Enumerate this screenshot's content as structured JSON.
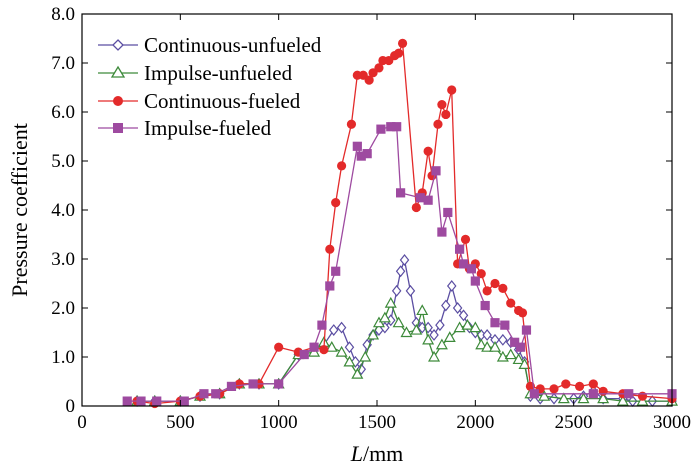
{
  "chart_data": {
    "type": "line",
    "xlabel_var": "L",
    "xlabel_unit": "/mm",
    "ylabel": "Pressure coefficient",
    "xlim": [
      0,
      3000
    ],
    "ylim": [
      0,
      8
    ],
    "xticks": [
      0,
      500,
      1000,
      1500,
      2000,
      2500,
      3000
    ],
    "yticks": [
      "0",
      "1.0",
      "2.0",
      "3.0",
      "4.0",
      "5.0",
      "6.0",
      "7.0",
      "8.0"
    ],
    "grid": false,
    "legend_position": "top-left",
    "series": [
      {
        "name": "Continuous-unfueled",
        "color": "#5b4ea2",
        "marker": "diamond-open",
        "points": [
          [
            280,
            0.1
          ],
          [
            370,
            0.1
          ],
          [
            500,
            0.1
          ],
          [
            600,
            0.2
          ],
          [
            700,
            0.25
          ],
          [
            800,
            0.45
          ],
          [
            900,
            0.45
          ],
          [
            1000,
            0.45
          ],
          [
            1100,
            1.05
          ],
          [
            1180,
            1.15
          ],
          [
            1230,
            1.25
          ],
          [
            1280,
            1.55
          ],
          [
            1320,
            1.6
          ],
          [
            1360,
            1.2
          ],
          [
            1390,
            0.9
          ],
          [
            1420,
            0.75
          ],
          [
            1450,
            1.25
          ],
          [
            1480,
            1.45
          ],
          [
            1510,
            1.55
          ],
          [
            1540,
            1.6
          ],
          [
            1570,
            1.75
          ],
          [
            1600,
            2.35
          ],
          [
            1620,
            2.75
          ],
          [
            1640,
            2.98
          ],
          [
            1670,
            2.35
          ],
          [
            1700,
            1.7
          ],
          [
            1730,
            1.6
          ],
          [
            1760,
            1.6
          ],
          [
            1790,
            1.45
          ],
          [
            1820,
            1.65
          ],
          [
            1850,
            2.05
          ],
          [
            1880,
            2.45
          ],
          [
            1910,
            2.0
          ],
          [
            1940,
            1.85
          ],
          [
            1970,
            1.6
          ],
          [
            2000,
            1.5
          ],
          [
            2030,
            1.45
          ],
          [
            2060,
            1.45
          ],
          [
            2100,
            1.35
          ],
          [
            2140,
            1.35
          ],
          [
            2180,
            1.3
          ],
          [
            2220,
            1.15
          ],
          [
            2250,
            0.9
          ],
          [
            2280,
            0.2
          ],
          [
            2330,
            0.15
          ],
          [
            2400,
            0.15
          ],
          [
            2500,
            0.15
          ],
          [
            2550,
            0.2
          ],
          [
            2600,
            0.3
          ],
          [
            2650,
            0.15
          ],
          [
            2750,
            0.15
          ],
          [
            2800,
            0.1
          ],
          [
            2900,
            0.1
          ],
          [
            3000,
            0.1
          ]
        ]
      },
      {
        "name": "Impulse-unfueled",
        "color": "#3d8a3a",
        "marker": "triangle-open",
        "points": [
          [
            280,
            0.1
          ],
          [
            370,
            0.1
          ],
          [
            500,
            0.1
          ],
          [
            600,
            0.2
          ],
          [
            700,
            0.25
          ],
          [
            800,
            0.45
          ],
          [
            900,
            0.45
          ],
          [
            1000,
            0.45
          ],
          [
            1100,
            1.05
          ],
          [
            1180,
            1.1
          ],
          [
            1230,
            1.3
          ],
          [
            1270,
            1.2
          ],
          [
            1320,
            1.1
          ],
          [
            1360,
            0.9
          ],
          [
            1400,
            0.65
          ],
          [
            1440,
            1.0
          ],
          [
            1480,
            1.45
          ],
          [
            1510,
            1.7
          ],
          [
            1540,
            1.8
          ],
          [
            1570,
            2.1
          ],
          [
            1610,
            1.7
          ],
          [
            1650,
            1.5
          ],
          [
            1700,
            1.55
          ],
          [
            1730,
            1.95
          ],
          [
            1760,
            1.35
          ],
          [
            1790,
            1.0
          ],
          [
            1830,
            1.25
          ],
          [
            1870,
            1.4
          ],
          [
            1920,
            1.6
          ],
          [
            1960,
            1.65
          ],
          [
            2000,
            1.6
          ],
          [
            2030,
            1.25
          ],
          [
            2060,
            1.2
          ],
          [
            2100,
            1.2
          ],
          [
            2140,
            1.0
          ],
          [
            2180,
            1.05
          ],
          [
            2220,
            0.95
          ],
          [
            2250,
            0.85
          ],
          [
            2280,
            0.25
          ],
          [
            2350,
            0.2
          ],
          [
            2450,
            0.15
          ],
          [
            2550,
            0.15
          ],
          [
            2650,
            0.15
          ],
          [
            2750,
            0.1
          ],
          [
            2850,
            0.1
          ],
          [
            3000,
            0.1
          ]
        ]
      },
      {
        "name": "Continuous-fueled",
        "color": "#e32a2a",
        "marker": "circle-filled",
        "points": [
          [
            280,
            0.1
          ],
          [
            370,
            0.05
          ],
          [
            500,
            0.1
          ],
          [
            600,
            0.2
          ],
          [
            700,
            0.25
          ],
          [
            800,
            0.45
          ],
          [
            900,
            0.45
          ],
          [
            1000,
            1.2
          ],
          [
            1100,
            1.1
          ],
          [
            1180,
            1.2
          ],
          [
            1230,
            1.15
          ],
          [
            1260,
            3.2
          ],
          [
            1290,
            4.15
          ],
          [
            1320,
            4.9
          ],
          [
            1370,
            5.75
          ],
          [
            1400,
            6.75
          ],
          [
            1430,
            6.75
          ],
          [
            1460,
            6.65
          ],
          [
            1480,
            6.8
          ],
          [
            1510,
            6.9
          ],
          [
            1530,
            7.05
          ],
          [
            1560,
            7.05
          ],
          [
            1590,
            7.15
          ],
          [
            1610,
            7.2
          ],
          [
            1630,
            7.4
          ],
          [
            1700,
            4.05
          ],
          [
            1730,
            4.35
          ],
          [
            1760,
            5.2
          ],
          [
            1780,
            4.7
          ],
          [
            1810,
            5.75
          ],
          [
            1830,
            6.15
          ],
          [
            1850,
            5.95
          ],
          [
            1880,
            6.45
          ],
          [
            1910,
            2.9
          ],
          [
            1950,
            3.4
          ],
          [
            1970,
            2.8
          ],
          [
            2000,
            2.9
          ],
          [
            2030,
            2.7
          ],
          [
            2060,
            2.35
          ],
          [
            2100,
            2.5
          ],
          [
            2140,
            2.4
          ],
          [
            2180,
            2.1
          ],
          [
            2220,
            1.95
          ],
          [
            2240,
            1.9
          ],
          [
            2280,
            0.4
          ],
          [
            2330,
            0.35
          ],
          [
            2400,
            0.35
          ],
          [
            2460,
            0.45
          ],
          [
            2530,
            0.4
          ],
          [
            2600,
            0.45
          ],
          [
            2650,
            0.3
          ],
          [
            2750,
            0.25
          ],
          [
            2850,
            0.2
          ],
          [
            3000,
            0.15
          ]
        ]
      },
      {
        "name": "Impulse-fueled",
        "color": "#9e4aa0",
        "marker": "square-filled",
        "points": [
          [
            230,
            0.1
          ],
          [
            300,
            0.1
          ],
          [
            380,
            0.1
          ],
          [
            520,
            0.1
          ],
          [
            620,
            0.25
          ],
          [
            680,
            0.25
          ],
          [
            760,
            0.4
          ],
          [
            870,
            0.45
          ],
          [
            1000,
            0.45
          ],
          [
            1130,
            1.05
          ],
          [
            1180,
            1.2
          ],
          [
            1220,
            1.65
          ],
          [
            1260,
            2.45
          ],
          [
            1290,
            2.75
          ],
          [
            1400,
            5.3
          ],
          [
            1420,
            5.1
          ],
          [
            1450,
            5.15
          ],
          [
            1520,
            5.65
          ],
          [
            1570,
            5.7
          ],
          [
            1600,
            5.7
          ],
          [
            1620,
            4.35
          ],
          [
            1720,
            4.25
          ],
          [
            1760,
            4.2
          ],
          [
            1800,
            4.8
          ],
          [
            1830,
            3.55
          ],
          [
            1860,
            3.95
          ],
          [
            1920,
            3.2
          ],
          [
            1940,
            2.9
          ],
          [
            1980,
            2.8
          ],
          [
            2000,
            2.55
          ],
          [
            2050,
            2.05
          ],
          [
            2100,
            1.7
          ],
          [
            2150,
            1.65
          ],
          [
            2200,
            1.3
          ],
          [
            2230,
            1.2
          ],
          [
            2260,
            1.55
          ],
          [
            2300,
            0.25
          ],
          [
            2600,
            0.25
          ],
          [
            2780,
            0.25
          ],
          [
            3000,
            0.25
          ]
        ]
      }
    ]
  }
}
